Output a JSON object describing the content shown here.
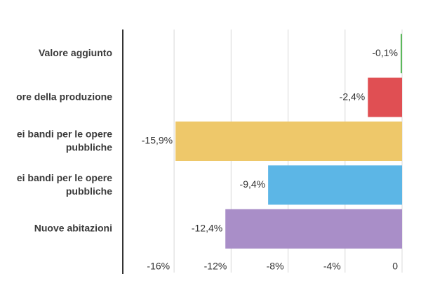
{
  "chart_data": {
    "type": "hbar",
    "categories": [
      "Valore aggiunto",
      "ore della produzione",
      [
        "ei bandi per le opere",
        "pubbliche"
      ],
      [
        "ei bandi per le opere",
        "pubbliche"
      ],
      "Nuove abitazioni"
    ],
    "values": [
      -0.1,
      -2.4,
      -15.9,
      -9.4,
      -12.4
    ],
    "value_labels": [
      "-0,1%",
      "-2,4%",
      "-15,9%",
      "-9,4%",
      "-12,4%"
    ],
    "colors": [
      "#5cb85c",
      "#e04f53",
      "#eec86a",
      "#5cb6e6",
      "#a98ec8"
    ],
    "xlim": [
      -19.6,
      0
    ],
    "xticks": [
      {
        "value": -16,
        "label": "-16%"
      },
      {
        "value": -12,
        "label": "-12%"
      },
      {
        "value": -8,
        "label": "-8%"
      },
      {
        "value": -4,
        "label": "-4%"
      },
      0
    ],
    "grid": true
  }
}
